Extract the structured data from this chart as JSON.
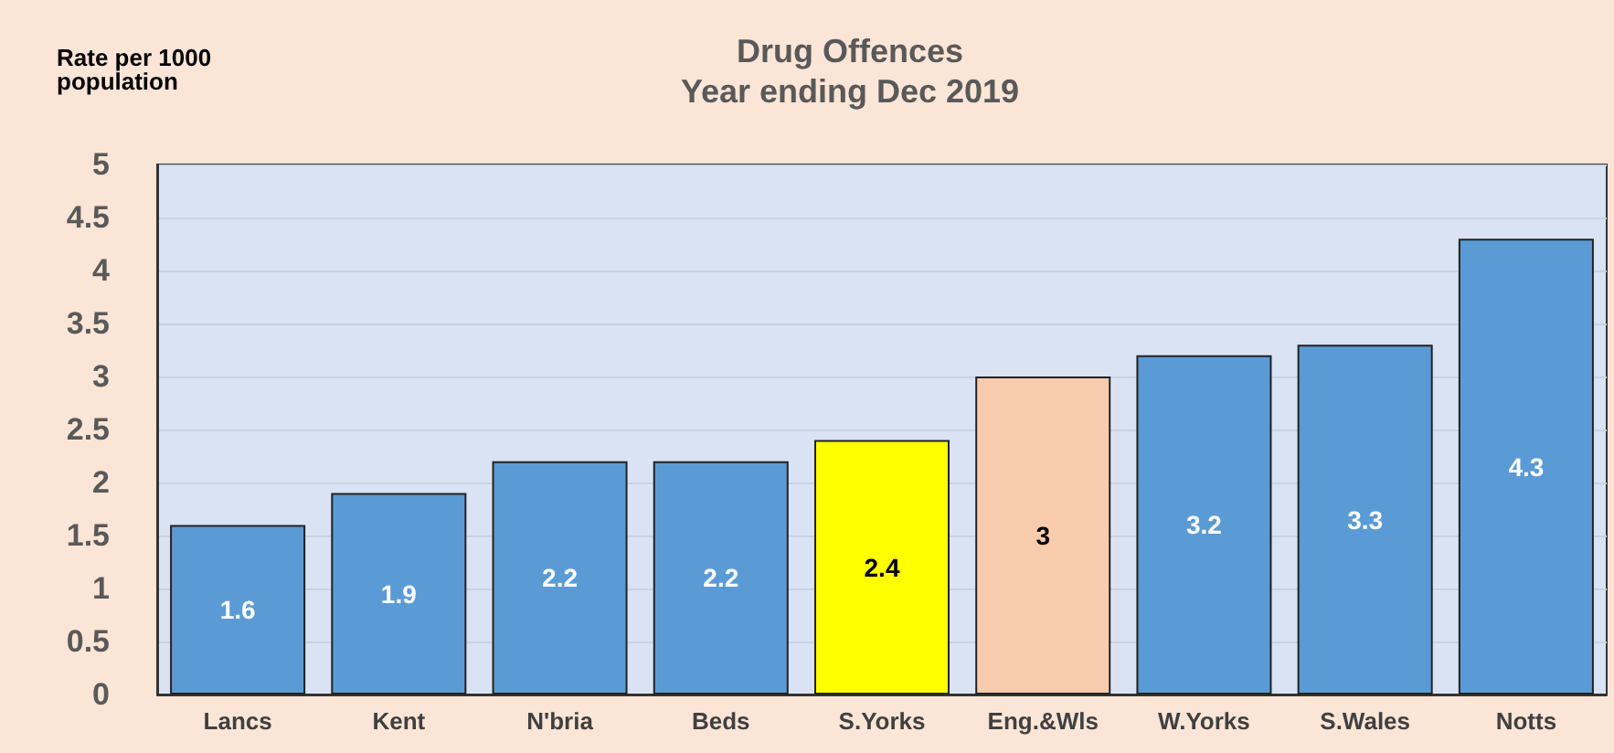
{
  "chart_data": {
    "type": "bar",
    "title": "Drug Offences",
    "subtitle": "Year ending Dec 2019",
    "ylabel": "Rate per 1000 population",
    "categories": [
      "Lancs",
      "Kent",
      "N'bria",
      "Beds",
      "S.Yorks",
      "Eng.&Wls",
      "W.Yorks",
      "S.Wales",
      "Notts"
    ],
    "values": [
      1.6,
      1.9,
      2.2,
      2.2,
      2.4,
      3,
      3.2,
      3.3,
      4.3
    ],
    "colors": [
      "#5b9bd5",
      "#5b9bd5",
      "#5b9bd5",
      "#5b9bd5",
      "#ffff00",
      "#f8cbad",
      "#5b9bd5",
      "#5b9bd5",
      "#5b9bd5"
    ],
    "ylim": [
      0,
      5
    ],
    "yticks": [
      0,
      0.5,
      1,
      1.5,
      2,
      2.5,
      3,
      3.5,
      4,
      4.5,
      5
    ],
    "grid": "y",
    "data_labels": true
  }
}
